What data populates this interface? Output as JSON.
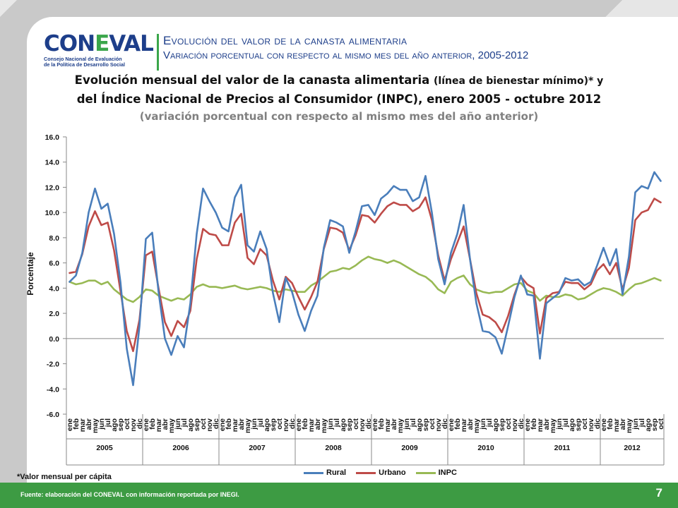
{
  "header": {
    "logo_word_a": "CON",
    "logo_word_l": "E",
    "logo_word_b": "VAL",
    "logo_sub_1": "Consejo Nacional de Evaluación",
    "logo_sub_2": "de la Política de Desarrollo Social",
    "title": "Evolución del valor de la canasta alimentaria",
    "subtitle": "Variación porcentual con respecto al mismo mes del año anterior, 2005-2012"
  },
  "chart_title": {
    "line1_a": "Evolución mensual del valor de la canasta alimentaria ",
    "line1_b": "(línea de bienestar mínimo)* y",
    "line2": "del Índice Nacional de Precios al Consumidor (INPC), enero 2005 - octubre 2012",
    "line3": "(variación porcentual con respecto al mismo mes del año anterior)"
  },
  "note": "*Valor mensual per cápita",
  "footer": {
    "source": "Fuente: elaboración del CONEVAL con información reportada por INEGI.",
    "page": "7"
  },
  "colors": {
    "rural": "#4a7ebb",
    "urbano": "#be4b48",
    "inpc": "#98b954",
    "green": "#3d9b43",
    "navy": "#1d3e8a"
  },
  "chart_data": {
    "type": "line",
    "ylabel": "Porcentaje",
    "ylim": [
      -6,
      16
    ],
    "yticks": [
      "-6.0",
      "-4.0",
      "-2.0",
      "0.0",
      "2.0",
      "4.0",
      "6.0",
      "8.0",
      "10.0",
      "12.0",
      "14.0",
      "16.0"
    ],
    "months": [
      "ene",
      "feb",
      "mar",
      "abr",
      "may",
      "jun",
      "jul",
      "ago",
      "sep",
      "oct",
      "nov",
      "dic"
    ],
    "years": [
      "2005",
      "2006",
      "2007",
      "2008",
      "2009",
      "2010",
      "2011",
      "2012"
    ],
    "months_last_year": 10,
    "legend_position": "bottom",
    "series": [
      {
        "name": "Rural",
        "color": "#4a7ebb",
        "values": [
          4.5,
          5.0,
          6.8,
          10.0,
          11.9,
          10.3,
          10.7,
          8.3,
          4.5,
          -0.8,
          -3.7,
          1.0,
          7.9,
          8.4,
          3.7,
          0.0,
          -1.3,
          0.2,
          -0.7,
          2.8,
          8.3,
          11.9,
          10.9,
          10.0,
          8.8,
          8.5,
          11.2,
          12.2,
          7.4,
          6.9,
          8.5,
          7.1,
          3.6,
          1.3,
          4.8,
          3.7,
          1.9,
          0.6,
          2.2,
          3.4,
          7.2,
          9.4,
          9.2,
          8.9,
          6.8,
          8.5,
          10.5,
          10.6,
          9.8,
          11.1,
          11.5,
          12.1,
          11.8,
          11.8,
          10.9,
          11.2,
          12.9,
          10.0,
          6.3,
          4.3,
          6.8,
          8.3,
          10.6,
          6.3,
          2.8,
          0.6,
          0.5,
          0.1,
          -1.2,
          1.0,
          3.3,
          5.0,
          3.5,
          3.4,
          -1.6,
          2.8,
          3.2,
          3.6,
          4.8,
          4.6,
          4.7,
          4.2,
          4.5,
          5.8,
          7.2,
          5.8,
          7.1,
          3.5,
          6.5,
          11.6,
          12.1,
          11.9,
          13.2,
          12.5
        ]
      },
      {
        "name": "Urbano",
        "color": "#be4b48",
        "values": [
          5.2,
          5.3,
          6.7,
          8.9,
          10.1,
          9.0,
          9.2,
          7.0,
          3.8,
          0.6,
          -1.0,
          1.5,
          6.6,
          6.9,
          4.0,
          1.3,
          0.2,
          1.4,
          0.9,
          2.2,
          6.3,
          8.7,
          8.3,
          8.2,
          7.4,
          7.4,
          9.2,
          9.9,
          6.4,
          5.9,
          7.1,
          6.6,
          4.6,
          3.1,
          4.9,
          4.4,
          3.3,
          2.3,
          3.3,
          4.5,
          7.1,
          8.8,
          8.7,
          8.4,
          7.0,
          8.2,
          9.8,
          9.7,
          9.2,
          9.9,
          10.5,
          10.8,
          10.6,
          10.6,
          10.1,
          10.4,
          11.2,
          9.4,
          6.6,
          4.6,
          6.3,
          7.6,
          8.9,
          6.3,
          3.6,
          1.9,
          1.7,
          1.3,
          0.5,
          1.8,
          3.5,
          4.9,
          4.3,
          4.0,
          0.4,
          3.2,
          3.6,
          3.7,
          4.5,
          4.4,
          4.4,
          3.9,
          4.3,
          5.4,
          5.9,
          5.1,
          6.0,
          3.9,
          5.6,
          9.4,
          10.0,
          10.2,
          11.1,
          10.8
        ]
      },
      {
        "name": "INPC",
        "color": "#98b954",
        "values": [
          4.5,
          4.3,
          4.4,
          4.6,
          4.6,
          4.3,
          4.5,
          3.9,
          3.5,
          3.1,
          2.9,
          3.3,
          3.9,
          3.8,
          3.4,
          3.2,
          3.0,
          3.2,
          3.1,
          3.5,
          4.1,
          4.3,
          4.1,
          4.1,
          4.0,
          4.1,
          4.2,
          4.0,
          3.9,
          4.0,
          4.1,
          4.0,
          3.8,
          3.7,
          3.9,
          3.8,
          3.7,
          3.7,
          4.2,
          4.5,
          4.9,
          5.3,
          5.4,
          5.6,
          5.5,
          5.8,
          6.2,
          6.5,
          6.3,
          6.2,
          6.0,
          6.2,
          6.0,
          5.7,
          5.4,
          5.1,
          4.9,
          4.5,
          3.9,
          3.6,
          4.5,
          4.8,
          5.0,
          4.3,
          3.9,
          3.7,
          3.6,
          3.7,
          3.7,
          4.0,
          4.3,
          4.4,
          3.8,
          3.6,
          3.0,
          3.4,
          3.3,
          3.3,
          3.5,
          3.4,
          3.1,
          3.2,
          3.5,
          3.8,
          4.0,
          3.9,
          3.7,
          3.4,
          3.9,
          4.3,
          4.4,
          4.6,
          4.8,
          4.6
        ]
      }
    ]
  }
}
